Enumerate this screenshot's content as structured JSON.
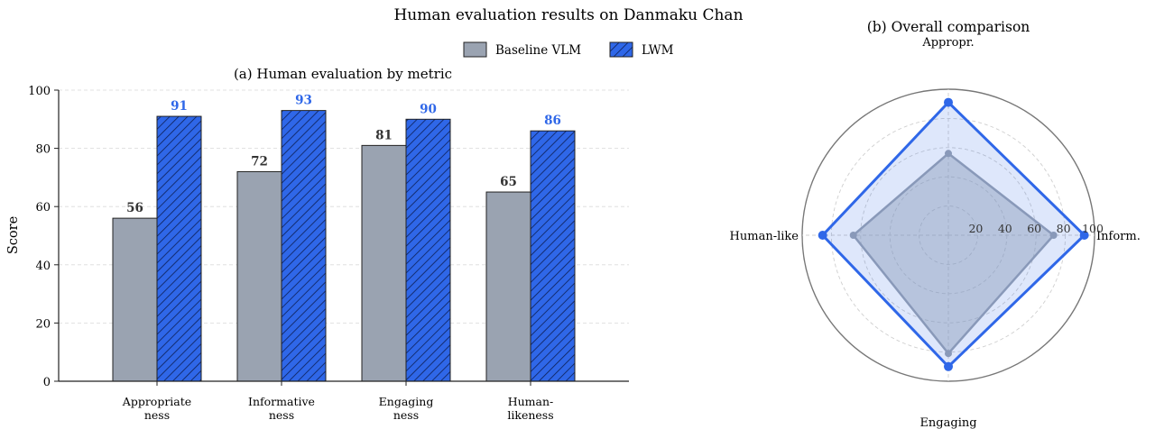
{
  "suptitle": "Human evaluation results on Danmaku Chan",
  "colors": {
    "baseline": "#9aa3b1",
    "lwm": "#2f67e8",
    "lwm_text": "#2f67e8",
    "value_text": "#333333",
    "grid": "#d9d9d9",
    "axis": "#222222"
  },
  "legend": {
    "items": [
      "Baseline VLM",
      "LWM"
    ],
    "placement": "top-right of bar chart"
  },
  "chart_data": [
    {
      "type": "bar",
      "title": "(a) Human evaluation by metric",
      "xlabel": "",
      "ylabel": "Score",
      "ylim": [
        0,
        100
      ],
      "yticks": [
        0,
        20,
        40,
        60,
        80,
        100
      ],
      "grid": true,
      "categories": [
        [
          "Appropriate",
          "ness"
        ],
        [
          "Informative",
          "ness"
        ],
        [
          "Engaging",
          "ness"
        ],
        [
          "Human-",
          "likeness"
        ]
      ],
      "series": [
        {
          "name": "Baseline VLM",
          "values": [
            56,
            72,
            81,
            65
          ]
        },
        {
          "name": "LWM",
          "values": [
            91,
            93,
            90,
            86
          ],
          "hatch": "diagonal"
        }
      ],
      "data_labels": true
    },
    {
      "type": "radar",
      "title": "(b) Overall comparison",
      "axes": [
        "Appropr.",
        "Inform.",
        "Engaging",
        "Human-like"
      ],
      "rlim": [
        0,
        100
      ],
      "rticks": [
        20,
        40,
        60,
        80,
        100
      ],
      "grid": true,
      "series": [
        {
          "name": "Baseline VLM",
          "values": [
            56,
            72,
            81,
            65
          ]
        },
        {
          "name": "LWM",
          "values": [
            91,
            93,
            90,
            86
          ]
        }
      ]
    }
  ]
}
